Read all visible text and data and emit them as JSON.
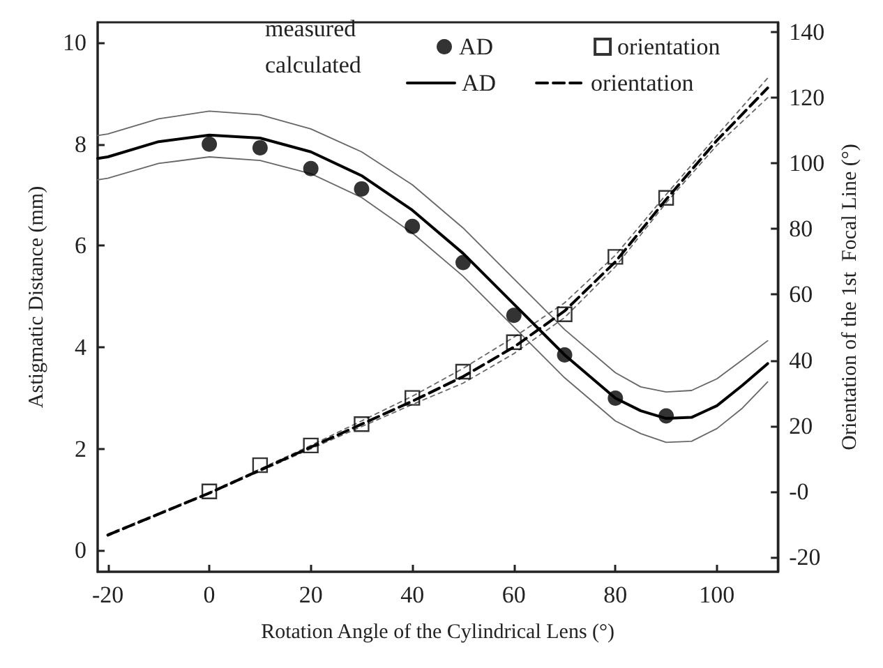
{
  "chart_data": {
    "type": "line",
    "xlabel": "Rotation Angle of the Cylindrical Lens (°)",
    "ylabel": "Astigmatic Distance (mm)",
    "y2label": "Orientation of the 1st  Focal Line (°)",
    "annotations": [
      "measured",
      "calculated"
    ],
    "xlim": [
      -22,
      112
    ],
    "xticks": [
      -20,
      0,
      20,
      40,
      60,
      80,
      100
    ],
    "ylim": [
      -0.42,
      10.4
    ],
    "yticks": [
      0,
      2,
      4,
      6,
      8,
      10
    ],
    "y2lim": [
      -24.5,
      143
    ],
    "y2ticks": [
      -20,
      {
        "value": 0,
        "label": "-0"
      },
      20,
      40,
      60,
      80,
      100,
      120,
      140
    ],
    "grid": false,
    "legend": "top",
    "series": [
      {
        "name": "AD",
        "type": "scatter",
        "marker": "circle",
        "color": "#000000",
        "x": [
          0,
          10,
          20,
          30,
          40,
          50,
          60,
          70,
          80,
          90
        ],
        "values": [
          8.0,
          7.93,
          7.52,
          7.12,
          6.38,
          5.67,
          4.63,
          3.85,
          3.0,
          2.65
        ]
      },
      {
        "name": "AD",
        "type": "line",
        "line_style": "solid",
        "color": "#000000",
        "x": [
          -22,
          -20,
          -10,
          0,
          10,
          20,
          30,
          40,
          50,
          60,
          70,
          80,
          85,
          90,
          95,
          100,
          105,
          110
        ],
        "values": [
          7.72,
          7.75,
          8.05,
          8.18,
          8.12,
          7.85,
          7.38,
          6.7,
          5.85,
          4.85,
          3.85,
          3.0,
          2.75,
          2.6,
          2.62,
          2.85,
          3.25,
          3.68
        ]
      },
      {
        "line_style": "solid",
        "color": "#666666",
        "x": [
          -22,
          -20,
          -10,
          0,
          10,
          20,
          30,
          40,
          50,
          60,
          70,
          80,
          85,
          90,
          95,
          100,
          105,
          110
        ],
        "values": [
          8.17,
          8.2,
          8.5,
          8.65,
          8.58,
          8.3,
          7.85,
          7.2,
          6.35,
          5.35,
          4.35,
          3.5,
          3.22,
          3.12,
          3.15,
          3.38,
          3.75,
          4.13
        ]
      },
      {
        "line_style": "solid",
        "color": "#666666",
        "x": [
          -22,
          -20,
          -10,
          0,
          10,
          20,
          30,
          40,
          50,
          60,
          70,
          80,
          85,
          90,
          95,
          100,
          105,
          110
        ],
        "values": [
          7.3,
          7.33,
          7.62,
          7.75,
          7.68,
          7.42,
          6.95,
          6.25,
          5.4,
          4.4,
          3.4,
          2.55,
          2.3,
          2.13,
          2.15,
          2.4,
          2.8,
          3.32
        ]
      },
      {
        "name": "orientation",
        "type": "scatter",
        "marker": "square",
        "axis": "y2",
        "color": "#000000",
        "x": [
          0,
          10,
          20,
          30,
          40,
          50,
          60,
          70,
          80,
          90
        ],
        "values": [
          0,
          8,
          14,
          20.5,
          28.5,
          36.5,
          45.5,
          54,
          71.5,
          89.5
        ]
      },
      {
        "name": "orientation",
        "type": "line",
        "line_style": "dashed",
        "axis": "y2",
        "color": "#000000",
        "x": [
          -20,
          0,
          20,
          40,
          50,
          60,
          70,
          80,
          90,
          100,
          110
        ],
        "values": [
          -13.3,
          -0.5,
          13.5,
          27.5,
          35,
          44,
          55,
          70,
          89,
          107,
          123
        ]
      },
      {
        "line_style": "dotted",
        "axis": "y2",
        "color": "#666666",
        "x": [
          -20,
          0,
          20,
          40,
          50,
          60,
          70,
          80,
          90,
          100,
          110
        ],
        "values": [
          -13,
          -0.3,
          14,
          29,
          37.5,
          47,
          57.5,
          72,
          90.5,
          108.5,
          126
        ]
      },
      {
        "line_style": "dotted",
        "axis": "y2",
        "color": "#666666",
        "x": [
          -20,
          0,
          20,
          40,
          50,
          60,
          70,
          80,
          90,
          100,
          110
        ],
        "values": [
          -13.6,
          -0.7,
          13,
          26.5,
          33,
          42,
          53,
          68.5,
          88,
          105.5,
          120
        ]
      }
    ]
  }
}
